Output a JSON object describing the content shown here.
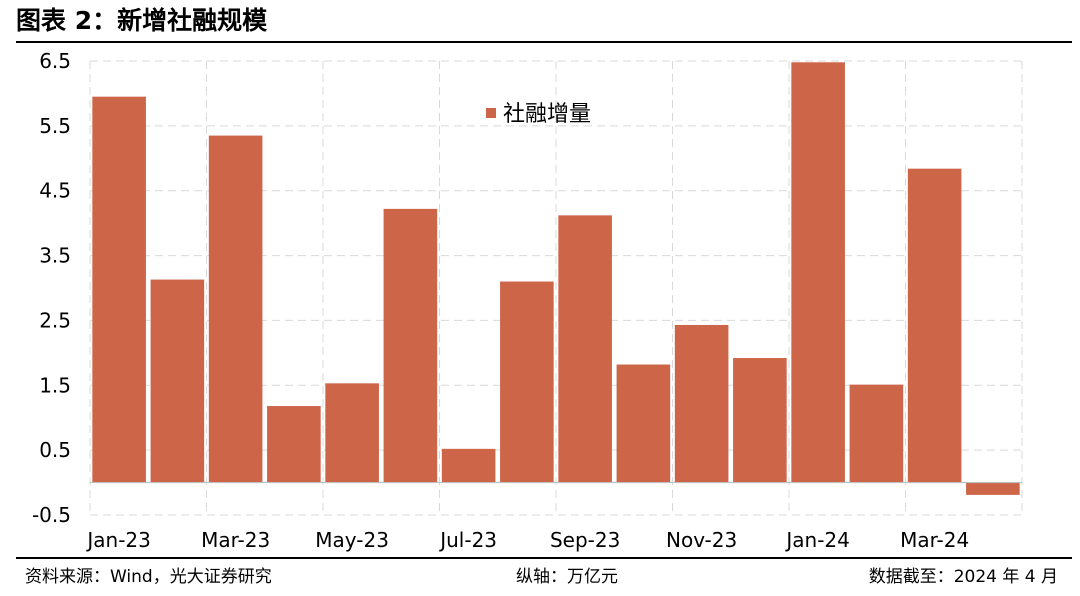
{
  "header": {
    "title": "图表 2：新增社融规模"
  },
  "footer": {
    "source": "资料来源：Wind，光大证券研究",
    "unit": "纵轴：万亿元",
    "date": "数据截至：2024 年 4 月"
  },
  "colors": {
    "bar": "#CD6549",
    "grid": "#D9D9D9",
    "axis": "#BFBFBF"
  },
  "chart_data": {
    "type": "bar",
    "categories": [
      "Jan-23",
      "Feb-23",
      "Mar-23",
      "Apr-23",
      "May-23",
      "Jun-23",
      "Jul-23",
      "Aug-23",
      "Sep-23",
      "Oct-23",
      "Nov-23",
      "Dec-23",
      "Jan-24",
      "Feb-24",
      "Mar-24",
      "Apr-24"
    ],
    "tick_labels": [
      "Jan-23",
      "Mar-23",
      "May-23",
      "Jul-23",
      "Sep-23",
      "Nov-23",
      "Jan-24",
      "Mar-24"
    ],
    "series": [
      {
        "name": "社融增量",
        "values": [
          5.95,
          3.13,
          5.35,
          1.18,
          1.53,
          4.22,
          0.52,
          3.1,
          4.12,
          1.82,
          2.43,
          1.92,
          6.48,
          1.51,
          4.84,
          -0.19
        ]
      }
    ],
    "yticks": [
      -0.5,
      0.5,
      1.5,
      2.5,
      3.5,
      4.5,
      5.5,
      6.5
    ],
    "ytick_labels": [
      "-0.5",
      "0.5",
      "1.5",
      "2.5",
      "3.5",
      "4.5",
      "5.5",
      "6.5"
    ],
    "ylim": [
      -0.5,
      6.5
    ],
    "grid": true,
    "legend": "top-center"
  }
}
